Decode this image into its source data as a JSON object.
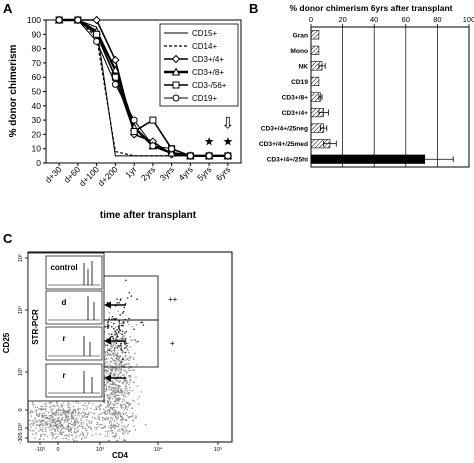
{
  "panels": {
    "a": "A",
    "b": "B",
    "c": "C"
  },
  "chart_data": [
    {
      "panel": "A",
      "type": "line",
      "ylabel": "% donor chimerism",
      "xlabel": "time after transplant",
      "ylim": [
        0,
        100
      ],
      "yticks": [
        0,
        10,
        20,
        30,
        40,
        50,
        60,
        70,
        80,
        90,
        100
      ],
      "categories": [
        "d+30",
        "d+60",
        "d+100",
        "d+200",
        "1yr",
        "2yrs",
        "3yrs",
        "4yrs",
        "5yrs",
        "6yrs"
      ],
      "legend_position": "top-right",
      "series": [
        {
          "name": "CD15+",
          "style": "thin-solid",
          "marker": "none",
          "values": [
            100,
            100,
            95,
            5,
            5,
            5,
            5,
            5,
            5,
            5
          ]
        },
        {
          "name": "CD14+",
          "style": "dashed",
          "marker": "none",
          "values": [
            100,
            100,
            88,
            8,
            5,
            5,
            5,
            5,
            5,
            5
          ]
        },
        {
          "name": "CD3+/4+",
          "style": "solid",
          "marker": "diamond-open",
          "values": [
            100,
            100,
            100,
            72,
            20,
            15,
            6,
            5,
            5,
            5
          ]
        },
        {
          "name": "CD3+/8+",
          "style": "thick-solid",
          "marker": "triangle-open",
          "values": [
            100,
            100,
            92,
            65,
            25,
            12,
            7,
            5,
            5,
            5
          ]
        },
        {
          "name": "CD3-/56+",
          "style": "solid",
          "marker": "square-open",
          "values": [
            100,
            100,
            90,
            60,
            22,
            30,
            10,
            5,
            5,
            5
          ]
        },
        {
          "name": "CD19+",
          "style": "thin-solid",
          "marker": "circle-open",
          "values": [
            100,
            100,
            85,
            55,
            30,
            12,
            10,
            5,
            5,
            5
          ]
        }
      ],
      "annotations": [
        {
          "text": "★",
          "at": "5yrs",
          "y": 15
        },
        {
          "text": "★",
          "at": "6yrs",
          "y": 15
        },
        {
          "text": "⇩",
          "at": "6yrs",
          "y": 27
        }
      ]
    },
    {
      "panel": "B",
      "type": "bar",
      "orientation": "horizontal",
      "title": "% donor chimerism 6yrs after transplant",
      "xlim": [
        0,
        100
      ],
      "xticks": [
        0,
        20,
        40,
        60,
        80,
        100
      ],
      "grid": true,
      "categories": [
        "Gran",
        "Mono",
        "NK",
        "CD19",
        "CD3+/8+",
        "CD3+/4+",
        "CD3+/4+/25neg",
        "CD3+/4+/25med",
        "CD3+/4+/25hi"
      ],
      "values": [
        5,
        5,
        7,
        5,
        6,
        8,
        8,
        12,
        72
      ],
      "errors": [
        0,
        0,
        2,
        0,
        1,
        3,
        2,
        4,
        18
      ]
    },
    {
      "panel": "C",
      "type": "scatter",
      "xlabel": "CD4",
      "ylabel": "CD25",
      "yticks_text": [
        "10⁵",
        "10⁴",
        "10³",
        "0",
        "-10³",
        "-305"
      ],
      "xticks_text": [
        "-10³",
        "0",
        "10³",
        "10⁴",
        "10⁵"
      ],
      "gates": [
        "++",
        "+",
        ""
      ],
      "inset": {
        "axis_label": "STR-PCR",
        "rows": [
          "control",
          "d",
          "r",
          "r"
        ]
      }
    }
  ]
}
